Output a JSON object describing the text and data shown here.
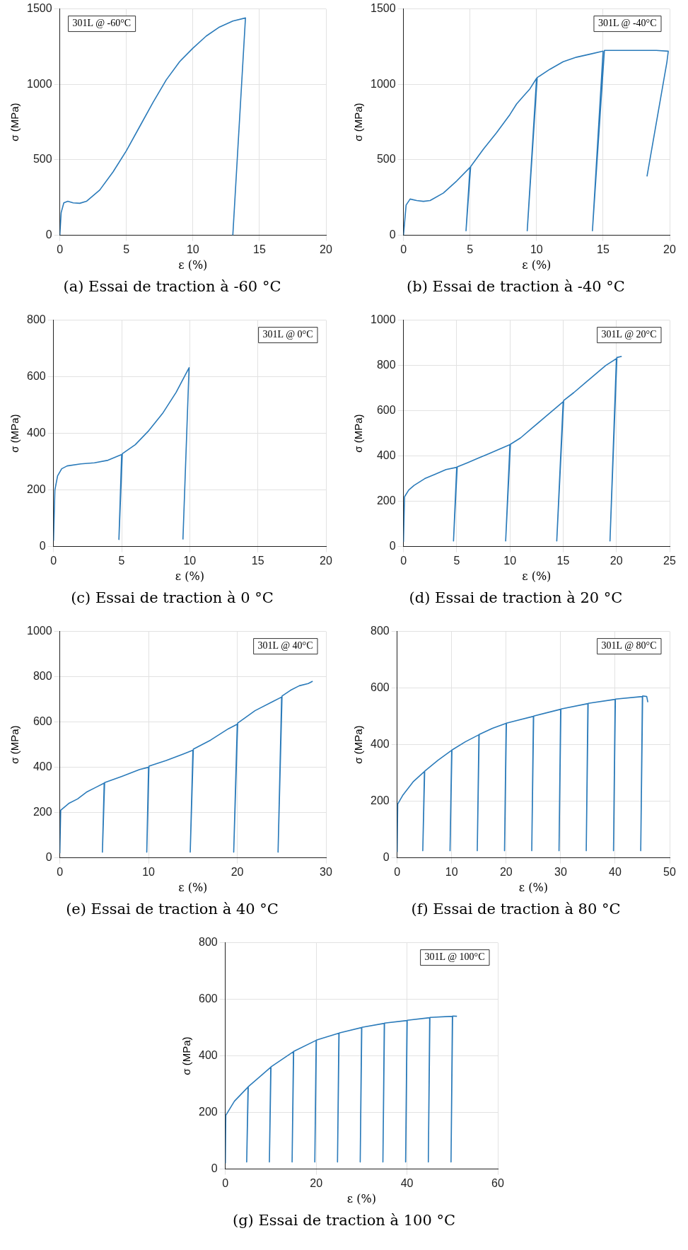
{
  "chart_data": [
    {
      "type": "line",
      "title": "(a) Essai de traction à -60 °C",
      "xlabel": "ε (%)",
      "ylabel": "σ (MPa)",
      "annotations": [
        "301L @ -60°C"
      ],
      "xlim": [
        0,
        20
      ],
      "ylim": [
        0,
        1500
      ],
      "xticks": [
        0,
        5,
        10,
        15,
        20
      ],
      "yticks": [
        0,
        500,
        1000,
        1500
      ],
      "grid": true,
      "legend": false,
      "series": [
        {
          "color": "#2b7bba",
          "x": [
            0,
            0.1,
            0.3,
            0.6,
            1,
            1.5,
            2,
            3,
            4,
            5,
            6,
            7,
            8,
            9,
            10,
            11,
            12,
            13,
            13.95,
            13
          ],
          "values": [
            0,
            150,
            215,
            225,
            215,
            212,
            225,
            300,
            420,
            560,
            720,
            880,
            1030,
            1150,
            1240,
            1320,
            1380,
            1420,
            1440,
            0
          ]
        }
      ]
    },
    {
      "type": "line",
      "title": "(b) Essai de traction à -40 °C",
      "xlabel": "ε (%)",
      "ylabel": "σ (MPa)",
      "annotations": [
        "301L @ -40°C"
      ],
      "xlim": [
        0,
        20
      ],
      "ylim": [
        0,
        1500
      ],
      "xticks": [
        0,
        5,
        10,
        15,
        20
      ],
      "yticks": [
        0,
        500,
        1000,
        1500
      ],
      "grid": true,
      "legend": false,
      "series": [
        {
          "color": "#2b7bba",
          "x": [
            0,
            0.2,
            0.5,
            1,
            1.5,
            2,
            3,
            4,
            5,
            4.7,
            5.05,
            6,
            7,
            8,
            8.5,
            9,
            9.5,
            10,
            9.3,
            10.05,
            11,
            12,
            13,
            14,
            15,
            14.2,
            15.1,
            16,
            17,
            18,
            19,
            19.9,
            19.8,
            18.3
          ],
          "values": [
            0,
            200,
            240,
            230,
            225,
            230,
            280,
            360,
            450,
            30,
            455,
            570,
            680,
            800,
            870,
            920,
            970,
            1040,
            30,
            1045,
            1100,
            1150,
            1180,
            1200,
            1220,
            30,
            1225,
            1225,
            1225,
            1225,
            1225,
            1220,
            1150,
            390
          ]
        }
      ]
    },
    {
      "type": "line",
      "title": "(c) Essai de traction à 0 °C",
      "xlabel": "ε (%)",
      "ylabel": "σ (MPa)",
      "annotations": [
        "301L @ 0°C"
      ],
      "xlim": [
        0,
        20
      ],
      "ylim": [
        0,
        800
      ],
      "xticks": [
        0,
        5,
        10,
        15,
        20
      ],
      "yticks": [
        0,
        200,
        400,
        600,
        800
      ],
      "grid": true,
      "legend": false,
      "series": [
        {
          "color": "#2b7bba",
          "x": [
            0,
            0.1,
            0.3,
            0.6,
            1,
            2,
            3,
            4,
            5,
            4.8,
            5.05,
            6,
            7,
            8,
            9,
            9.95,
            9.5
          ],
          "values": [
            20,
            200,
            250,
            275,
            285,
            292,
            296,
            305,
            325,
            25,
            328,
            360,
            410,
            470,
            545,
            632,
            25
          ]
        }
      ]
    },
    {
      "type": "line",
      "title": "(d) Essai de traction à 20 °C",
      "xlabel": "ε (%)",
      "ylabel": "σ (MPa)",
      "annotations": [
        "301L @ 20°C"
      ],
      "xlim": [
        0,
        25
      ],
      "ylim": [
        0,
        1000
      ],
      "xticks": [
        0,
        5,
        10,
        15,
        20,
        25
      ],
      "yticks": [
        0,
        200,
        400,
        600,
        800,
        1000
      ],
      "grid": true,
      "legend": false,
      "series": [
        {
          "color": "#2b7bba",
          "x": [
            0,
            0.1,
            0.5,
            1,
            2,
            3,
            4,
            5,
            4.7,
            5.05,
            6,
            7,
            8,
            9,
            10,
            9.6,
            10.05,
            11,
            12,
            13,
            14,
            15,
            14.4,
            15.05,
            16,
            17,
            18,
            19,
            20,
            19.4,
            20.05,
            20.5
          ],
          "values": [
            20,
            220,
            250,
            270,
            300,
            320,
            340,
            350,
            25,
            352,
            370,
            390,
            410,
            430,
            450,
            25,
            452,
            480,
            520,
            560,
            600,
            640,
            25,
            645,
            680,
            720,
            760,
            800,
            830,
            25,
            835,
            840
          ]
        }
      ]
    },
    {
      "type": "line",
      "title": "(e) Essai de traction à 40 °C",
      "xlabel": "ε (%)",
      "ylabel": "σ (MPa)",
      "annotations": [
        "301L @ 40°C"
      ],
      "xlim": [
        0,
        30
      ],
      "ylim": [
        0,
        1000
      ],
      "xticks": [
        0,
        10,
        20,
        30
      ],
      "yticks": [
        0,
        200,
        400,
        600,
        800,
        1000
      ],
      "grid": true,
      "legend": false,
      "series": [
        {
          "color": "#2b7bba",
          "x": [
            0,
            0.1,
            1,
            2,
            3,
            4,
            5,
            4.8,
            5.05,
            7,
            9,
            10,
            9.8,
            10.05,
            12,
            14,
            15,
            14.7,
            15.05,
            17,
            19,
            20,
            19.6,
            20.05,
            22,
            24,
            25,
            24.6,
            25.05,
            26,
            27,
            28,
            28.5
          ],
          "values": [
            20,
            210,
            240,
            260,
            290,
            310,
            330,
            25,
            332,
            360,
            390,
            400,
            25,
            405,
            430,
            460,
            475,
            25,
            480,
            520,
            570,
            590,
            25,
            595,
            650,
            690,
            710,
            25,
            715,
            740,
            760,
            770,
            780
          ]
        }
      ]
    },
    {
      "type": "line",
      "title": "(f) Essai de traction à 80 °C",
      "xlabel": "ε (%)",
      "ylabel": "σ (MPa)",
      "annotations": [
        "301L @ 80°C"
      ],
      "xlim": [
        0,
        50
      ],
      "ylim": [
        0,
        800
      ],
      "xticks": [
        0,
        10,
        20,
        30,
        40,
        50
      ],
      "yticks": [
        0,
        200,
        400,
        600,
        800
      ],
      "grid": true,
      "legend": false,
      "series": [
        {
          "color": "#2b7bba",
          "x": [
            0,
            0.1,
            1,
            3,
            5,
            4.7,
            5.05,
            7.5,
            10,
            9.7,
            10.05,
            12.5,
            15,
            14.7,
            15.05,
            17.5,
            20,
            19.7,
            20.05,
            25,
            24.7,
            25.05,
            30,
            29.7,
            30.05,
            35,
            34.7,
            35.05,
            40,
            39.7,
            40.05,
            45,
            44.7,
            45.05,
            45.8,
            46
          ],
          "values": [
            20,
            190,
            220,
            270,
            305,
            25,
            306,
            345,
            380,
            25,
            381,
            410,
            435,
            25,
            436,
            458,
            475,
            25,
            476,
            500,
            25,
            501,
            525,
            25,
            526,
            545,
            25,
            546,
            560,
            25,
            561,
            570,
            25,
            572,
            570,
            550
          ]
        }
      ]
    },
    {
      "type": "line",
      "title": "(g) Essai de traction à 100 °C",
      "xlabel": "ε (%)",
      "ylabel": "σ (MPa)",
      "annotations": [
        "301L @ 100°C"
      ],
      "xlim": [
        0,
        60
      ],
      "ylim": [
        0,
        800
      ],
      "xticks": [
        0,
        20,
        40,
        60
      ],
      "yticks": [
        0,
        200,
        400,
        600,
        800
      ],
      "grid": true,
      "legend": false,
      "series": [
        {
          "color": "#2b7bba",
          "x": [
            0,
            0.1,
            2,
            5,
            4.7,
            5.05,
            10,
            9.7,
            10.05,
            15,
            14.7,
            15.05,
            20,
            19.7,
            20.05,
            25,
            24.7,
            25.05,
            30,
            29.7,
            30.05,
            35,
            34.7,
            35.05,
            40,
            39.7,
            40.05,
            45,
            44.7,
            45.05,
            50,
            49.7,
            50.05,
            51
          ],
          "values": [
            20,
            190,
            240,
            290,
            25,
            291,
            360,
            25,
            361,
            415,
            25,
            416,
            455,
            25,
            456,
            480,
            25,
            481,
            500,
            25,
            501,
            515,
            25,
            516,
            525,
            25,
            526,
            535,
            25,
            536,
            540,
            25,
            541,
            540
          ]
        }
      ]
    }
  ]
}
